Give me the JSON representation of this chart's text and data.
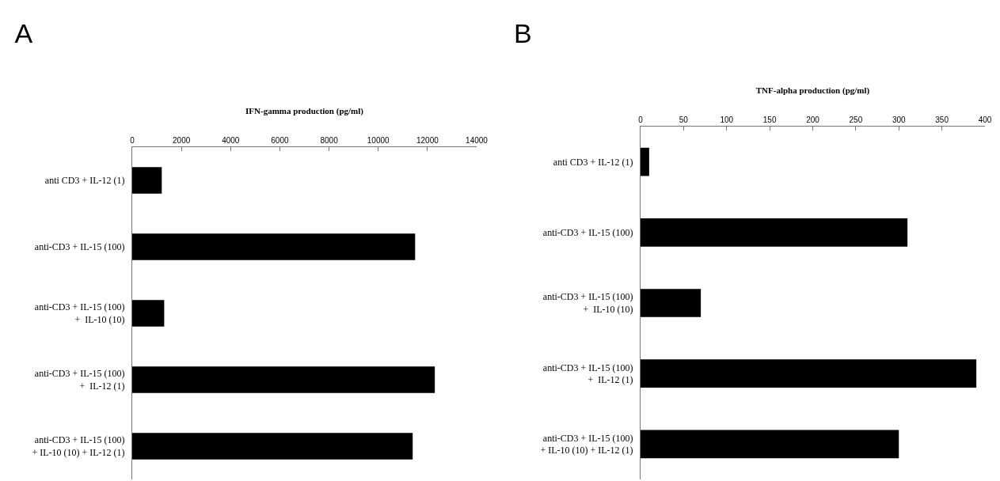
{
  "chart_data": [
    {
      "type": "bar",
      "title": "A",
      "xlabel": "IFN-gamma production (pg/ml)",
      "orientation": "horizontal",
      "categories": [
        "anti CD3 + IL-12 (1)",
        "anti-CD3 + IL-15 (100)",
        "anti-CD3 + IL-15 (100)\n+  IL-10 (10)",
        "anti-CD3 + IL-15 (100)\n+  IL-12 (1)",
        "anti-CD3 + IL-15 (100)\n+ IL-10 (10) + IL-12 (1)"
      ],
      "values": [
        1200,
        11500,
        1300,
        12300,
        11400
      ],
      "color": "#000000",
      "xlim": [
        0,
        14000
      ],
      "xticks": [
        0,
        2000,
        4000,
        6000,
        8000,
        10000,
        12000,
        14000
      ],
      "grid": false
    },
    {
      "type": "bar",
      "title": "B",
      "xlabel": "TNF-alpha production (pg/ml)",
      "orientation": "horizontal",
      "categories": [
        "anti CD3 + IL-12 (1)",
        "anti-CD3 + IL-15 (100)",
        "anti-CD3 + IL-15 (100)\n+  IL-10 (10)",
        "anti-CD3 + IL-15 (100)\n+  IL-12 (1)",
        "anti-CD3 + IL-15 (100)\n+ IL-10 (10) + IL-12 (1)"
      ],
      "values": [
        10,
        310,
        70,
        390,
        300
      ],
      "color": "#000000",
      "xlim": [
        0,
        400
      ],
      "xticks": [
        0,
        50,
        100,
        150,
        200,
        250,
        300,
        350,
        400
      ],
      "grid": false
    }
  ]
}
